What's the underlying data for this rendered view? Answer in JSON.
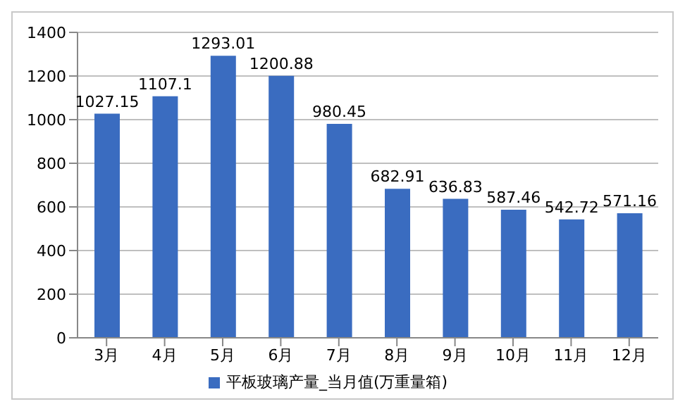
{
  "chart_data": {
    "type": "bar",
    "categories": [
      "3月",
      "4月",
      "5月",
      "6月",
      "7月",
      "8月",
      "9月",
      "10月",
      "11月",
      "12月"
    ],
    "series": [
      {
        "name": "平板玻璃产量_当月值(万重量箱)",
        "color": "#3a6cc0",
        "values": [
          1027.15,
          1107.1,
          1293.01,
          1200.88,
          980.45,
          682.91,
          636.83,
          587.46,
          542.72,
          571.16
        ]
      }
    ],
    "ylim": [
      0,
      1400
    ],
    "yticks": [
      0,
      200,
      400,
      600,
      800,
      1000,
      1200,
      1400
    ],
    "grid": "y",
    "legend": "bottom",
    "data_labels": true
  }
}
